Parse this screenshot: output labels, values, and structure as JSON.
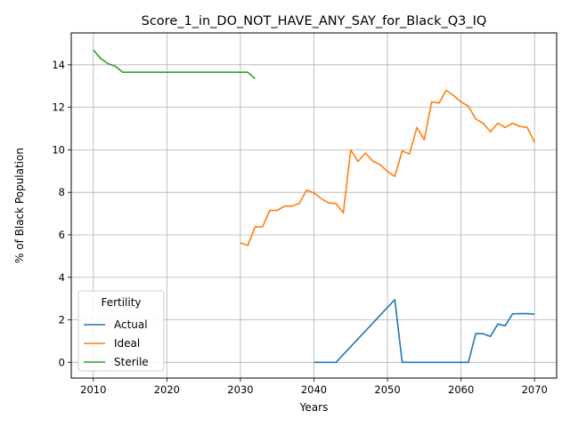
{
  "chart_data": {
    "type": "line",
    "title": "Score_1_in_DO_NOT_HAVE_ANY_SAY_for_Black_Q3_IQ",
    "xlabel": "Years",
    "ylabel": "% of Black Population",
    "xlim": [
      2007,
      2073
    ],
    "ylim": [
      -0.74,
      15.5
    ],
    "xticks": [
      2010,
      2020,
      2030,
      2040,
      2050,
      2060,
      2070
    ],
    "yticks": [
      0,
      2,
      4,
      6,
      8,
      10,
      12,
      14
    ],
    "grid": true,
    "legend": {
      "title": "Fertility",
      "position": "lower-left"
    },
    "series": [
      {
        "name": "Actual",
        "color": "#1f77b4",
        "points": [
          [
            2040,
            0
          ],
          [
            2041,
            0
          ],
          [
            2042,
            0
          ],
          [
            2043,
            0
          ],
          [
            2051,
            2.95
          ],
          [
            2052,
            0
          ],
          [
            2053,
            0
          ],
          [
            2061,
            0
          ],
          [
            2062,
            1.35
          ],
          [
            2063,
            1.35
          ],
          [
            2064,
            1.22
          ],
          [
            2065,
            1.8
          ],
          [
            2066,
            1.72
          ],
          [
            2067,
            2.28
          ],
          [
            2068,
            2.29
          ],
          [
            2069,
            2.29
          ],
          [
            2070,
            2.27
          ]
        ]
      },
      {
        "name": "Ideal",
        "color": "#ff7f0e",
        "points": [
          [
            2030,
            5.62
          ],
          [
            2031,
            5.5
          ],
          [
            2032,
            6.37
          ],
          [
            2033,
            6.37
          ],
          [
            2034,
            7.15
          ],
          [
            2035,
            7.15
          ],
          [
            2036,
            7.35
          ],
          [
            2037,
            7.35
          ],
          [
            2038,
            7.47
          ],
          [
            2039,
            8.1
          ],
          [
            2040,
            7.97
          ],
          [
            2041,
            7.7
          ],
          [
            2042,
            7.5
          ],
          [
            2043,
            7.47
          ],
          [
            2044,
            7.03
          ],
          [
            2045,
            10.0
          ],
          [
            2046,
            9.45
          ],
          [
            2047,
            9.85
          ],
          [
            2048,
            9.47
          ],
          [
            2049,
            9.3
          ],
          [
            2050,
            8.98
          ],
          [
            2051,
            8.75
          ],
          [
            2052,
            9.95
          ],
          [
            2053,
            9.8
          ],
          [
            2054,
            11.05
          ],
          [
            2055,
            10.47
          ],
          [
            2056,
            12.25
          ],
          [
            2057,
            12.2
          ],
          [
            2058,
            12.8
          ],
          [
            2059,
            12.55
          ],
          [
            2060,
            12.25
          ],
          [
            2061,
            12.05
          ],
          [
            2062,
            11.45
          ],
          [
            2063,
            11.25
          ],
          [
            2064,
            10.85
          ],
          [
            2065,
            11.25
          ],
          [
            2066,
            11.05
          ],
          [
            2067,
            11.25
          ],
          [
            2068,
            11.1
          ],
          [
            2069,
            11.05
          ],
          [
            2070,
            10.35
          ]
        ]
      },
      {
        "name": "Sterile",
        "color": "#2ca02c",
        "points": [
          [
            2010,
            14.7
          ],
          [
            2011,
            14.3
          ],
          [
            2012,
            14.05
          ],
          [
            2013,
            13.93
          ],
          [
            2014,
            13.65
          ],
          [
            2015,
            13.65
          ],
          [
            2016,
            13.65
          ],
          [
            2017,
            13.65
          ],
          [
            2018,
            13.65
          ],
          [
            2019,
            13.65
          ],
          [
            2020,
            13.65
          ],
          [
            2021,
            13.65
          ],
          [
            2022,
            13.65
          ],
          [
            2023,
            13.65
          ],
          [
            2024,
            13.65
          ],
          [
            2025,
            13.65
          ],
          [
            2026,
            13.65
          ],
          [
            2027,
            13.65
          ],
          [
            2028,
            13.65
          ],
          [
            2029,
            13.65
          ],
          [
            2030,
            13.65
          ],
          [
            2031,
            13.65
          ],
          [
            2032,
            13.35
          ]
        ]
      }
    ]
  }
}
